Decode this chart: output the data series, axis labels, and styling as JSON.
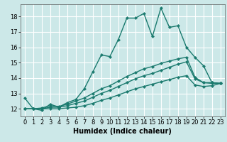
{
  "title": "",
  "xlabel": "Humidex (Indice chaleur)",
  "xlim": [
    -0.5,
    23.5
  ],
  "ylim": [
    11.5,
    18.8
  ],
  "bg_color": "#cce8e8",
  "grid_color": "#ffffff",
  "line_color": "#1a7a6e",
  "xticks": [
    0,
    1,
    2,
    3,
    4,
    5,
    6,
    7,
    8,
    9,
    10,
    11,
    12,
    13,
    14,
    15,
    16,
    17,
    18,
    19,
    20,
    21,
    22,
    23
  ],
  "yticks": [
    12,
    13,
    14,
    15,
    16,
    17,
    18
  ],
  "series": [
    {
      "x": [
        0,
        1,
        2,
        3,
        4,
        5,
        6,
        7,
        8,
        9,
        10,
        11,
        12,
        13,
        14,
        15,
        16,
        17,
        18,
        19,
        20,
        21,
        22,
        23
      ],
      "y": [
        12.7,
        12.0,
        11.9,
        12.3,
        12.1,
        12.4,
        12.6,
        13.3,
        14.4,
        15.5,
        15.4,
        16.5,
        17.9,
        17.9,
        18.2,
        16.7,
        18.55,
        17.3,
        17.4,
        16.0,
        15.35,
        14.8,
        13.7,
        13.65
      ],
      "marker": "D",
      "markersize": 2.2,
      "linewidth": 1.0
    },
    {
      "x": [
        0,
        1,
        2,
        3,
        4,
        5,
        6,
        7,
        8,
        9,
        10,
        11,
        12,
        13,
        14,
        15,
        16,
        17,
        18,
        19,
        20,
        21,
        22,
        23
      ],
      "y": [
        12.0,
        12.0,
        12.05,
        12.2,
        12.15,
        12.3,
        12.5,
        12.7,
        13.0,
        13.3,
        13.5,
        13.8,
        14.1,
        14.35,
        14.6,
        14.75,
        14.95,
        15.1,
        15.25,
        15.35,
        14.05,
        13.7,
        13.7,
        13.65
      ],
      "marker": "D",
      "markersize": 2.2,
      "linewidth": 1.0
    },
    {
      "x": [
        0,
        1,
        2,
        3,
        4,
        5,
        6,
        7,
        8,
        9,
        10,
        11,
        12,
        13,
        14,
        15,
        16,
        17,
        18,
        19,
        20,
        21,
        22,
        23
      ],
      "y": [
        12.0,
        12.0,
        12.0,
        12.1,
        12.1,
        12.2,
        12.35,
        12.5,
        12.75,
        13.0,
        13.2,
        13.45,
        13.7,
        13.95,
        14.15,
        14.3,
        14.5,
        14.7,
        14.9,
        15.05,
        13.95,
        13.7,
        13.65,
        13.65
      ],
      "marker": "D",
      "markersize": 2.2,
      "linewidth": 1.0
    },
    {
      "x": [
        0,
        1,
        2,
        3,
        4,
        5,
        6,
        7,
        8,
        9,
        10,
        11,
        12,
        13,
        14,
        15,
        16,
        17,
        18,
        19,
        20,
        21,
        22,
        23
      ],
      "y": [
        12.0,
        12.0,
        12.0,
        12.0,
        12.0,
        12.05,
        12.1,
        12.2,
        12.35,
        12.55,
        12.7,
        12.9,
        13.1,
        13.3,
        13.45,
        13.6,
        13.75,
        13.9,
        14.05,
        14.15,
        13.55,
        13.45,
        13.5,
        13.65
      ],
      "marker": "D",
      "markersize": 2.2,
      "linewidth": 1.0
    }
  ],
  "tick_fontsize": 6.0,
  "xlabel_fontsize": 7.0
}
